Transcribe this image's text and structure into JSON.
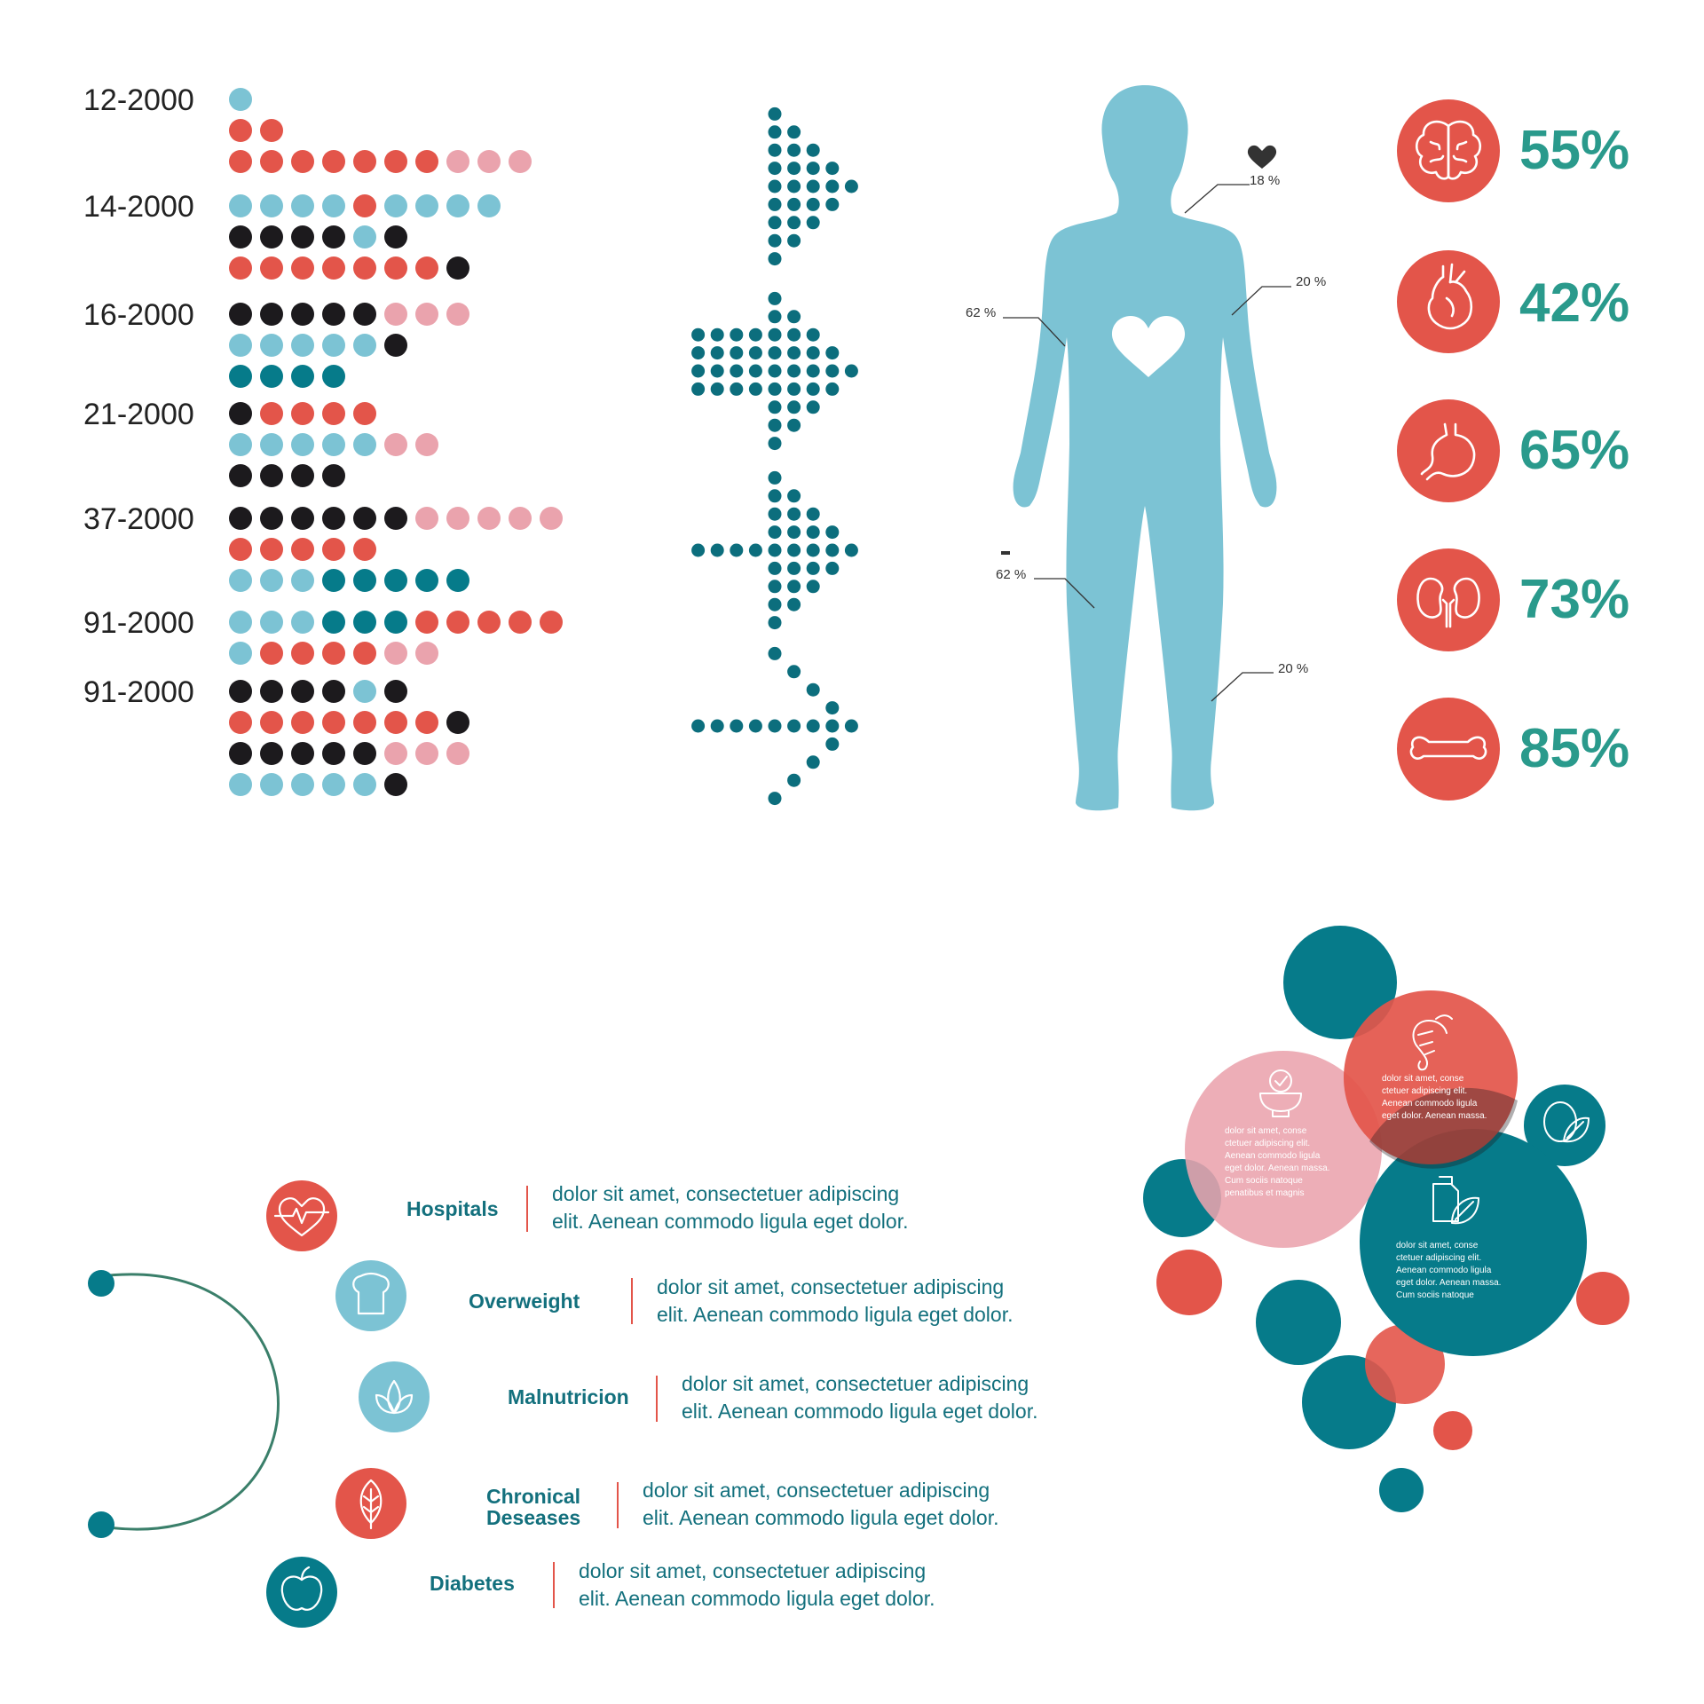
{
  "colors": {
    "light_blue": "#7cc3d4",
    "red": "#e3554a",
    "pink": "#eaa3ad",
    "black": "#1c1a1d",
    "teal": "#067b8a",
    "arrow_teal": "#0c6e7d",
    "body": "#7cc3d4",
    "pct_text": "#2a9a8c",
    "cat_text": "#13707d",
    "stetho": "#3a7f6a"
  },
  "dot_chart": {
    "groups": [
      {
        "label": "12-2000",
        "rows": [
          [
            "b"
          ],
          [
            "r",
            "r"
          ],
          [
            "r",
            "r",
            "r",
            "r",
            "r",
            "r",
            "r",
            "p",
            "p",
            "p"
          ]
        ]
      },
      {
        "label": "14-2000",
        "rows": [
          [
            "b",
            "b",
            "b",
            "b",
            "r",
            "b",
            "b",
            "b",
            "b"
          ],
          [
            "k",
            "k",
            "k",
            "k",
            "b",
            "k"
          ],
          [
            "r",
            "r",
            "r",
            "r",
            "r",
            "r",
            "r",
            "k"
          ]
        ]
      },
      {
        "label": "16-2000",
        "rows": [
          [
            "k",
            "k",
            "k",
            "k",
            "k",
            "p",
            "p",
            "p"
          ],
          [
            "b",
            "b",
            "b",
            "b",
            "b",
            "k"
          ],
          [
            "t",
            "t",
            "t",
            "t"
          ]
        ]
      },
      {
        "label": "21-2000",
        "rows": [
          [
            "k",
            "r",
            "r",
            "r",
            "r"
          ],
          [
            "b",
            "b",
            "b",
            "b",
            "b",
            "p",
            "p"
          ],
          [
            "k",
            "k",
            "k",
            "k"
          ]
        ]
      },
      {
        "label": "37-2000",
        "rows": [
          [
            "k",
            "k",
            "k",
            "k",
            "k",
            "k",
            "p",
            "p",
            "p",
            "p",
            "p"
          ],
          [
            "r",
            "r",
            "r",
            "r",
            "r"
          ],
          [
            "b",
            "b",
            "b",
            "t",
            "t",
            "t",
            "t",
            "t"
          ]
        ]
      },
      {
        "label": "91-2000",
        "rows": [
          [
            "b",
            "b",
            "b",
            "t",
            "t",
            "t",
            "r",
            "r",
            "r",
            "r",
            "r"
          ],
          [
            "b",
            "r",
            "r",
            "r",
            "r",
            "p",
            "p"
          ]
        ]
      },
      {
        "label": "91-2000",
        "rows": [
          [
            "k",
            "k",
            "k",
            "k",
            "b",
            "k"
          ],
          [
            "r",
            "r",
            "r",
            "r",
            "r",
            "r",
            "r",
            "k"
          ],
          [
            "k",
            "k",
            "k",
            "k",
            "k",
            "p",
            "p",
            "p"
          ],
          [
            "b",
            "b",
            "b",
            "b",
            "b",
            "k"
          ]
        ]
      }
    ]
  },
  "arrows": [
    {
      "name": "arrow-triangle"
    },
    {
      "name": "arrow-block"
    },
    {
      "name": "arrow-plus"
    },
    {
      "name": "arrow-thin"
    }
  ],
  "body_figure": {
    "labels": [
      {
        "id": "neck",
        "text": "18 %"
      },
      {
        "id": "right-arm",
        "text": "20 %"
      },
      {
        "id": "left-arm",
        "text": "62 %"
      },
      {
        "id": "left-leg",
        "text": "62 %"
      },
      {
        "id": "right-leg",
        "text": "20 %"
      }
    ]
  },
  "organ_stats": [
    {
      "icon": "brain-icon",
      "value": "55%"
    },
    {
      "icon": "heart-organ-icon",
      "value": "42%"
    },
    {
      "icon": "stomach-icon",
      "value": "65%"
    },
    {
      "icon": "kidneys-icon",
      "value": "73%"
    },
    {
      "icon": "bone-icon",
      "value": "85%"
    }
  ],
  "categories": [
    {
      "icon": "heartbeat-icon",
      "color": "#e3554a",
      "title_lines": [
        "Hospitals"
      ],
      "desc_lines": [
        "dolor sit amet, consectetuer adipiscing",
        "elit. Aenean commodo ligula eget dolor."
      ]
    },
    {
      "icon": "bread-icon",
      "color": "#7cc3d4",
      "title_lines": [
        "Overweight"
      ],
      "desc_lines": [
        "dolor sit amet, consectetuer adipiscing",
        "elit. Aenean commodo ligula eget dolor."
      ]
    },
    {
      "icon": "sprout-icon",
      "color": "#7cc3d4",
      "title_lines": [
        "Malnutricion"
      ],
      "desc_lines": [
        "dolor sit amet, consectetuer adipiscing",
        "elit. Aenean commodo ligula eget dolor."
      ]
    },
    {
      "icon": "leaf-icon",
      "color": "#e3554a",
      "title_lines": [
        "Chronical",
        "Deseases"
      ],
      "desc_lines": [
        "dolor sit amet, consectetuer adipiscing",
        "elit. Aenean commodo ligula eget dolor."
      ]
    },
    {
      "icon": "apple-icon",
      "color": "#067b8a",
      "title_lines": [
        "Diabetes"
      ],
      "desc_lines": [
        "dolor sit amet, consectetuer adipiscing",
        "elit. Aenean commodo ligula eget dolor."
      ]
    }
  ],
  "bubbles": {
    "pink_text": [
      "dolor sit amet, conse",
      "ctetuer adipiscing elit.",
      "Aenean commodo ligula",
      "eget dolor. Aenean massa.",
      "Cum sociis natoque",
      "penatibus et magnis"
    ],
    "red_text": [
      "dolor sit amet, conse",
      "ctetuer adipiscing elit.",
      "Aenean commodo ligula",
      "eget dolor. Aenean massa."
    ],
    "teal_text": [
      "dolor sit amet, conse",
      "ctetuer adipiscing elit.",
      "Aenean commodo ligula",
      "eget dolor. Aenean massa.",
      "Cum sociis natoque"
    ]
  }
}
